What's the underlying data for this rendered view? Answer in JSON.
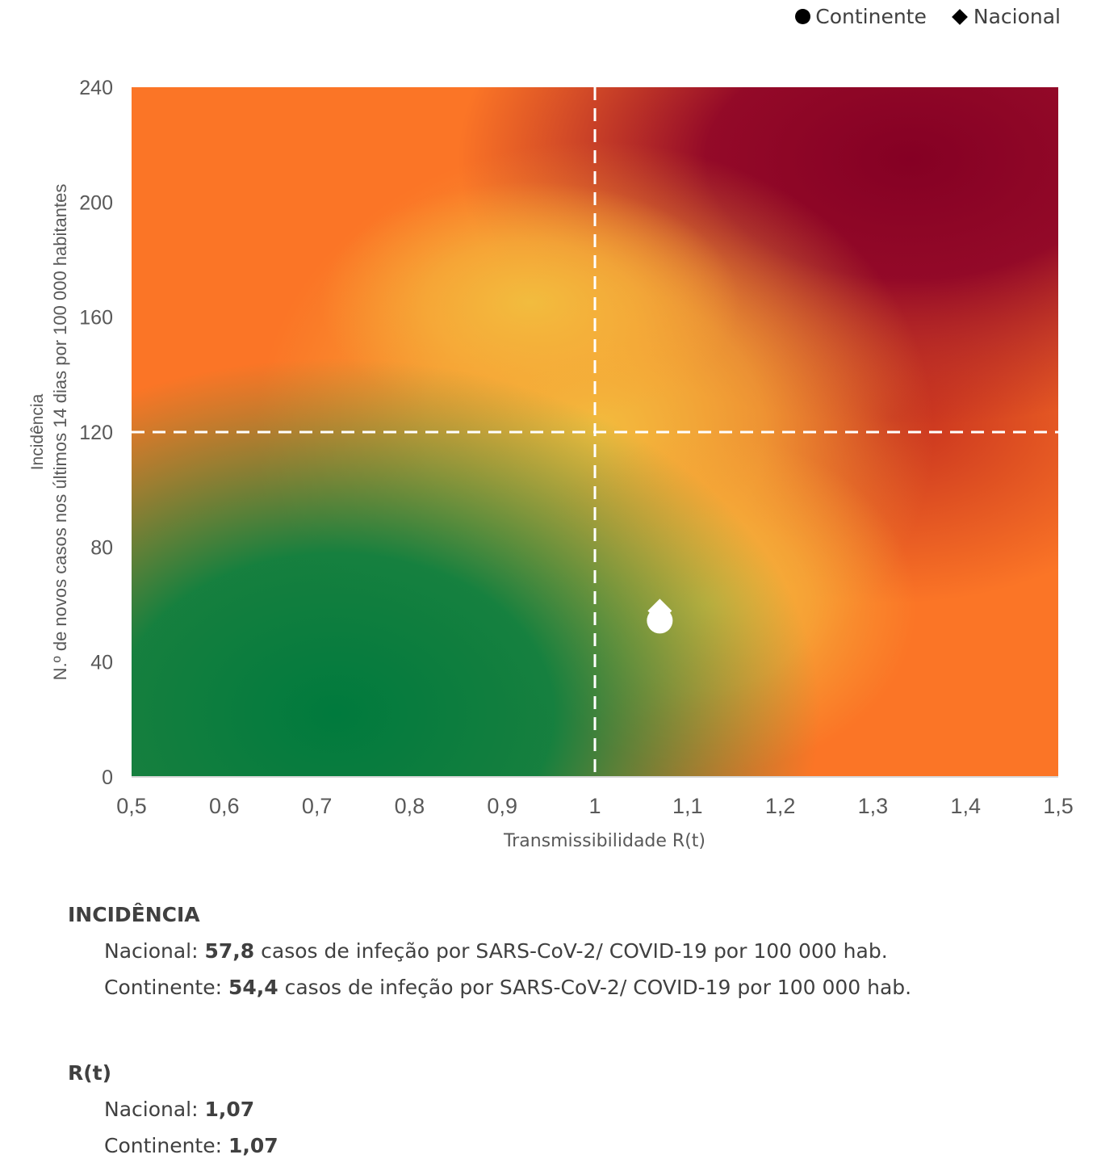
{
  "legend": {
    "continente": "Continente",
    "nacional": "Nacional"
  },
  "chart_data": {
    "type": "scatter",
    "xlabel": "Transmissibilidade R(t)",
    "ylabel_line1": "Incidência",
    "ylabel_line2": "N.º de novos casos nos últimos 14 dias por 100 000 habitantes",
    "xlim": [
      0.5,
      1.5
    ],
    "ylim": [
      0,
      240
    ],
    "x_ticks": [
      "0,5",
      "0,6",
      "0,7",
      "0,8",
      "0,9",
      "1",
      "1,1",
      "1,2",
      "1,3",
      "1,4",
      "1,5"
    ],
    "y_ticks": [
      "0",
      "40",
      "80",
      "120",
      "160",
      "200",
      "240"
    ],
    "thresholds": {
      "x": 1,
      "y": 120
    },
    "series": [
      {
        "name": "Continente",
        "marker": "circle",
        "x": 1.07,
        "y": 54.4
      },
      {
        "name": "Nacional",
        "marker": "diamond",
        "x": 1.07,
        "y": 57.8
      }
    ],
    "colors": {
      "green": "#007a3d",
      "yellow": "#f0b43c",
      "orange": "#fb7526",
      "dark_red": "#8a0026"
    }
  },
  "summary": {
    "incidence": {
      "heading": "INCIDÊNCIA",
      "nacional_label": "Nacional: ",
      "nacional_value": "57,8",
      "continente_label": "Continente: ",
      "continente_value": "54,4",
      "suffix": " casos de infeção por SARS-CoV-2/ COVID-19 por 100 000 hab."
    },
    "rt": {
      "heading": "R(t)",
      "nacional_label": "Nacional: ",
      "nacional_value": "1,07",
      "continente_label": "Continente: ",
      "continente_value": "1,07"
    }
  }
}
